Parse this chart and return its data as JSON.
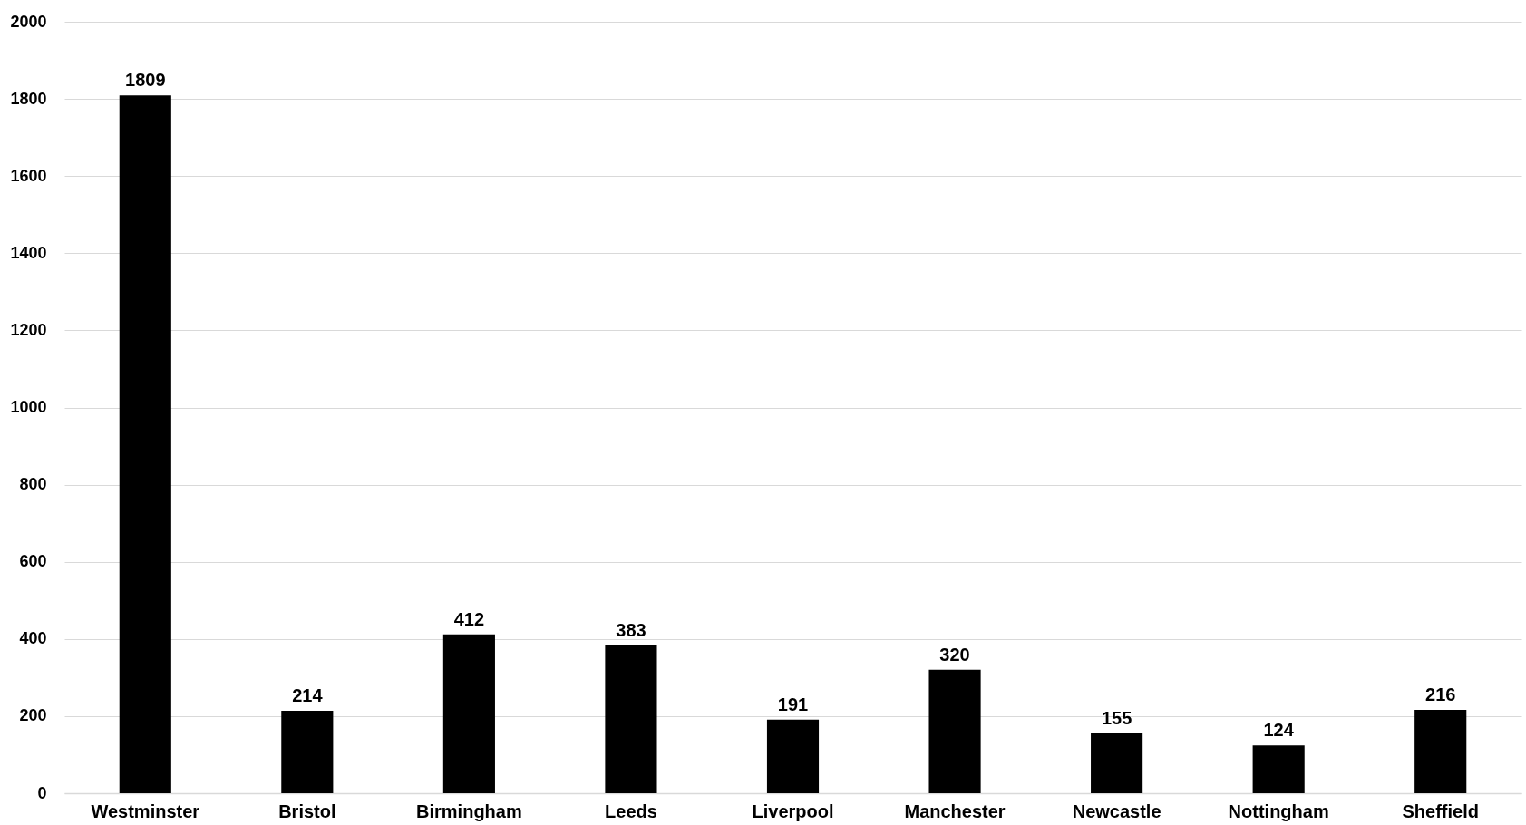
{
  "chart_data": {
    "type": "bar",
    "categories": [
      "Westminster",
      "Bristol",
      "Birmingham",
      "Leeds",
      "Liverpool",
      "Manchester",
      "Newcastle",
      "Nottingham",
      "Sheffield"
    ],
    "values": [
      1809,
      214,
      412,
      383,
      191,
      320,
      155,
      124,
      216
    ],
    "color": "#000000",
    "ylim": [
      0,
      2000
    ],
    "yticks": [
      0,
      200,
      400,
      600,
      800,
      1000,
      1200,
      1400,
      1600,
      1800,
      2000
    ],
    "grid": "y",
    "data_labels": true
  }
}
